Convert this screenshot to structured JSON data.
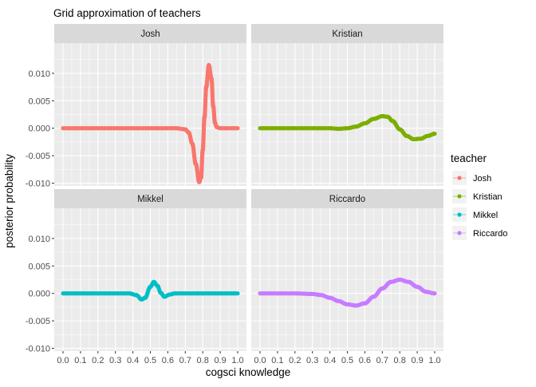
{
  "chart_data": {
    "type": "scatter",
    "title": "Grid approximation of teachers",
    "xlabel": "cogsci knowledge",
    "ylabel": "posterior probability",
    "xlim": [
      0,
      1
    ],
    "ylim": [
      -0.0105,
      0.0155
    ],
    "x_ticks": [
      "0.0",
      "0.1",
      "0.2",
      "0.3",
      "0.4",
      "0.5",
      "0.6",
      "0.7",
      "0.8",
      "0.9",
      "1.0"
    ],
    "y_ticks": [
      "-0.010",
      "-0.005",
      "0.000",
      "0.005",
      "0.010"
    ],
    "facet_layout": "2x2 grid",
    "grid": true,
    "legend": {
      "title": "teacher",
      "placement": "right"
    },
    "series": [
      {
        "name": "Josh",
        "color": "#F8766D",
        "points": [
          [
            0.0,
            0.0
          ],
          [
            0.1,
            0.0
          ],
          [
            0.2,
            0.0
          ],
          [
            0.3,
            0.0
          ],
          [
            0.4,
            0.0
          ],
          [
            0.5,
            0.0
          ],
          [
            0.6,
            0.0
          ],
          [
            0.65,
            0.0
          ],
          [
            0.7,
            -0.0002
          ],
          [
            0.72,
            -0.0008
          ],
          [
            0.74,
            -0.0028
          ],
          [
            0.76,
            -0.0065
          ],
          [
            0.78,
            -0.0098
          ],
          [
            0.79,
            -0.009
          ],
          [
            0.8,
            -0.004
          ],
          [
            0.81,
            0.002
          ],
          [
            0.82,
            0.0075
          ],
          [
            0.835,
            0.0115
          ],
          [
            0.85,
            0.009
          ],
          [
            0.86,
            0.004
          ],
          [
            0.87,
            0.001
          ],
          [
            0.88,
            0.0002
          ],
          [
            0.9,
            0.0
          ],
          [
            0.95,
            0.0
          ],
          [
            1.0,
            0.0
          ]
        ]
      },
      {
        "name": "Kristian",
        "color": "#7CAE00",
        "points": [
          [
            0.0,
            0.0
          ],
          [
            0.1,
            0.0
          ],
          [
            0.2,
            0.0
          ],
          [
            0.3,
            0.0
          ],
          [
            0.4,
            0.0
          ],
          [
            0.45,
            -0.0001
          ],
          [
            0.5,
            0.0
          ],
          [
            0.55,
            0.0003
          ],
          [
            0.6,
            0.0009
          ],
          [
            0.65,
            0.0017
          ],
          [
            0.7,
            0.0022
          ],
          [
            0.73,
            0.0021
          ],
          [
            0.76,
            0.0013
          ],
          [
            0.8,
            -0.0002
          ],
          [
            0.84,
            -0.0014
          ],
          [
            0.88,
            -0.002
          ],
          [
            0.92,
            -0.0019
          ],
          [
            0.96,
            -0.0014
          ],
          [
            1.0,
            -0.001
          ]
        ]
      },
      {
        "name": "Mikkel",
        "color": "#00BFC4",
        "points": [
          [
            0.0,
            0.0
          ],
          [
            0.1,
            0.0
          ],
          [
            0.2,
            0.0
          ],
          [
            0.3,
            0.0
          ],
          [
            0.38,
            0.0
          ],
          [
            0.42,
            -0.0003
          ],
          [
            0.45,
            -0.0011
          ],
          [
            0.47,
            -0.0008
          ],
          [
            0.5,
            0.0012
          ],
          [
            0.52,
            0.0021
          ],
          [
            0.54,
            0.0014
          ],
          [
            0.56,
            0.0001
          ],
          [
            0.58,
            -0.0006
          ],
          [
            0.61,
            -0.0002
          ],
          [
            0.64,
            0.0
          ],
          [
            0.7,
            0.0
          ],
          [
            0.8,
            0.0
          ],
          [
            0.9,
            0.0
          ],
          [
            1.0,
            0.0
          ]
        ]
      },
      {
        "name": "Riccardo",
        "color": "#C77CFF",
        "points": [
          [
            0.0,
            0.0
          ],
          [
            0.1,
            0.0
          ],
          [
            0.2,
            0.0
          ],
          [
            0.3,
            -0.0001
          ],
          [
            0.35,
            -0.0003
          ],
          [
            0.4,
            -0.0008
          ],
          [
            0.45,
            -0.0014
          ],
          [
            0.5,
            -0.002
          ],
          [
            0.55,
            -0.0022
          ],
          [
            0.6,
            -0.0018
          ],
          [
            0.65,
            -0.0006
          ],
          [
            0.7,
            0.0009
          ],
          [
            0.75,
            0.0021
          ],
          [
            0.8,
            0.0025
          ],
          [
            0.85,
            0.0021
          ],
          [
            0.9,
            0.0012
          ],
          [
            0.95,
            0.0003
          ],
          [
            1.0,
            0.0
          ]
        ]
      }
    ]
  }
}
